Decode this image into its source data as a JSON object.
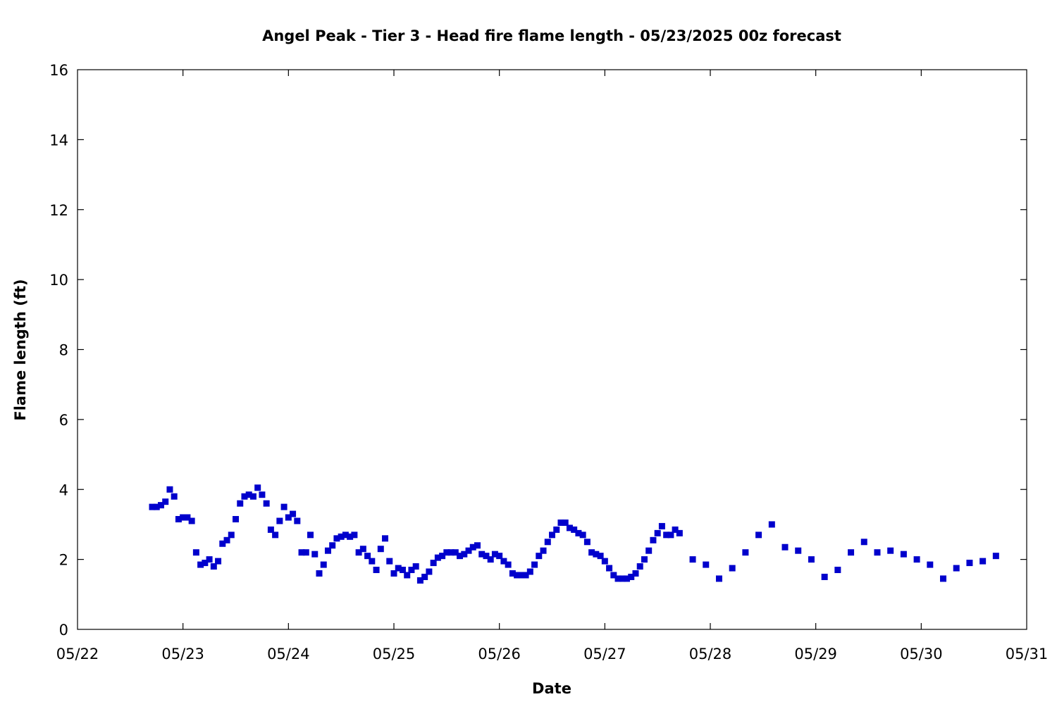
{
  "chart_data": {
    "type": "scatter",
    "title": "Angel Peak - Tier 3 - Head fire flame length - 05/23/2025 00z forecast",
    "xlabel": "Date",
    "ylabel": "Flame length (ft)",
    "xlim": [
      "05/22",
      "05/31"
    ],
    "ylim": [
      0,
      16
    ],
    "x_ticks": [
      "05/22",
      "05/23",
      "05/24",
      "05/25",
      "05/26",
      "05/27",
      "05/28",
      "05/29",
      "05/30",
      "05/31"
    ],
    "y_ticks": [
      0,
      2,
      4,
      6,
      8,
      10,
      12,
      14,
      16
    ],
    "grid": false,
    "legend": "none",
    "marker_color": "#0000cc",
    "series": [
      {
        "x": [
          "05/22 17:00",
          "05/22 18:00",
          "05/22 19:00",
          "05/22 20:00",
          "05/22 21:00",
          "05/22 22:00",
          "05/22 23:00",
          "05/23 00:00",
          "05/23 01:00",
          "05/23 02:00",
          "05/23 03:00",
          "05/23 04:00",
          "05/23 05:00",
          "05/23 06:00",
          "05/23 07:00",
          "05/23 08:00",
          "05/23 09:00",
          "05/23 10:00",
          "05/23 11:00",
          "05/23 12:00",
          "05/23 13:00",
          "05/23 14:00",
          "05/23 15:00",
          "05/23 16:00",
          "05/23 17:00",
          "05/23 18:00",
          "05/23 19:00",
          "05/23 20:00",
          "05/23 21:00",
          "05/23 22:00",
          "05/23 23:00",
          "05/24 00:00",
          "05/24 01:00",
          "05/24 02:00",
          "05/24 03:00",
          "05/24 04:00",
          "05/24 05:00",
          "05/24 06:00",
          "05/24 07:00",
          "05/24 08:00",
          "05/24 09:00",
          "05/24 10:00",
          "05/24 11:00",
          "05/24 12:00",
          "05/24 13:00",
          "05/24 14:00",
          "05/24 15:00",
          "05/24 16:00",
          "05/24 17:00",
          "05/24 18:00",
          "05/24 19:00",
          "05/24 20:00",
          "05/24 21:00",
          "05/24 22:00",
          "05/24 23:00",
          "05/25 00:00",
          "05/25 01:00",
          "05/25 02:00",
          "05/25 03:00",
          "05/25 04:00",
          "05/25 05:00",
          "05/25 06:00",
          "05/25 07:00",
          "05/25 08:00",
          "05/25 09:00",
          "05/25 10:00",
          "05/25 11:00",
          "05/25 12:00",
          "05/25 13:00",
          "05/25 14:00",
          "05/25 15:00",
          "05/25 16:00",
          "05/25 17:00",
          "05/25 18:00",
          "05/25 19:00",
          "05/25 20:00",
          "05/25 21:00",
          "05/25 22:00",
          "05/25 23:00",
          "05/26 00:00",
          "05/26 01:00",
          "05/26 02:00",
          "05/26 03:00",
          "05/26 04:00",
          "05/26 05:00",
          "05/26 06:00",
          "05/26 07:00",
          "05/26 08:00",
          "05/26 09:00",
          "05/26 10:00",
          "05/26 11:00",
          "05/26 12:00",
          "05/26 13:00",
          "05/26 14:00",
          "05/26 15:00",
          "05/26 16:00",
          "05/26 17:00",
          "05/26 18:00",
          "05/26 19:00",
          "05/26 20:00",
          "05/26 21:00",
          "05/26 22:00",
          "05/26 23:00",
          "05/27 00:00",
          "05/27 01:00",
          "05/27 02:00",
          "05/27 03:00",
          "05/27 04:00",
          "05/27 05:00",
          "05/27 06:00",
          "05/27 07:00",
          "05/27 08:00",
          "05/27 09:00",
          "05/27 10:00",
          "05/27 11:00",
          "05/27 12:00",
          "05/27 13:00",
          "05/27 14:00",
          "05/27 15:00",
          "05/27 16:00",
          "05/27 17:00",
          "05/27 20:00",
          "05/27 23:00",
          "05/28 02:00",
          "05/28 05:00",
          "05/28 08:00",
          "05/28 11:00",
          "05/28 14:00",
          "05/28 17:00",
          "05/28 20:00",
          "05/28 23:00",
          "05/29 02:00",
          "05/29 05:00",
          "05/29 08:00",
          "05/29 11:00",
          "05/29 14:00",
          "05/29 17:00",
          "05/29 20:00",
          "05/29 23:00",
          "05/30 02:00",
          "05/30 05:00",
          "05/30 08:00",
          "05/30 11:00",
          "05/30 14:00",
          "05/30 17:00"
        ],
        "y": [
          3.5,
          3.5,
          3.55,
          3.65,
          4.0,
          3.8,
          3.15,
          3.2,
          3.2,
          3.1,
          2.2,
          1.85,
          1.9,
          2.0,
          1.8,
          1.95,
          2.45,
          2.55,
          2.7,
          3.15,
          3.6,
          3.8,
          3.85,
          3.8,
          4.05,
          3.85,
          3.6,
          2.85,
          2.7,
          3.1,
          3.5,
          3.2,
          3.3,
          3.1,
          2.2,
          2.2,
          2.7,
          2.15,
          1.6,
          1.85,
          2.25,
          2.4,
          2.6,
          2.65,
          2.7,
          2.65,
          2.7,
          2.2,
          2.3,
          2.1,
          1.95,
          1.7,
          2.3,
          2.6,
          1.95,
          1.6,
          1.75,
          1.7,
          1.55,
          1.7,
          1.8,
          1.4,
          1.5,
          1.65,
          1.9,
          2.05,
          2.1,
          2.2,
          2.2,
          2.2,
          2.1,
          2.15,
          2.25,
          2.35,
          2.4,
          2.15,
          2.1,
          2.0,
          2.15,
          2.1,
          1.95,
          1.85,
          1.6,
          1.55,
          1.55,
          1.55,
          1.65,
          1.85,
          2.1,
          2.25,
          2.5,
          2.7,
          2.85,
          3.05,
          3.05,
          2.9,
          2.85,
          2.75,
          2.7,
          2.5,
          2.2,
          2.15,
          2.1,
          1.95,
          1.75,
          1.55,
          1.45,
          1.45,
          1.45,
          1.5,
          1.6,
          1.8,
          2.0,
          2.25,
          2.55,
          2.75,
          2.95,
          2.7,
          2.7,
          2.85,
          2.75,
          2.0,
          1.85,
          1.45,
          1.75,
          2.2,
          2.7,
          3.0,
          2.35,
          2.25,
          2.0,
          1.5,
          1.7,
          2.2,
          2.5,
          2.2,
          2.25,
          2.15,
          2.0,
          1.85,
          1.45,
          1.75,
          1.9,
          1.95,
          2.1
        ]
      }
    ]
  }
}
